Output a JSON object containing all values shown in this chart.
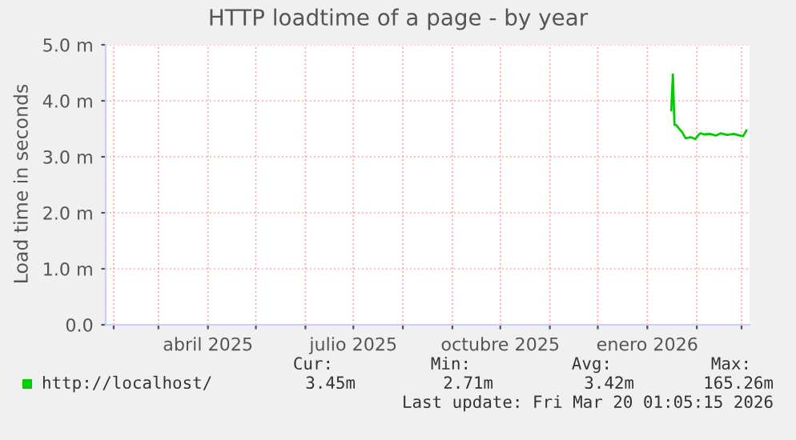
{
  "chart_data": {
    "type": "line",
    "title": "HTTP loadtime of a page - by year",
    "ylabel": "Load time in seconds",
    "xlim": [
      "2025-01-27",
      "2026-03-06"
    ],
    "xticks": [
      {
        "value": "2025-02-01",
        "label": null
      },
      {
        "value": "2025-03-01",
        "label": null
      },
      {
        "value": "2025-04-01",
        "label": "abril 2025"
      },
      {
        "value": "2025-05-01",
        "label": null
      },
      {
        "value": "2025-06-01",
        "label": null
      },
      {
        "value": "2025-07-01",
        "label": "julio 2025"
      },
      {
        "value": "2025-08-01",
        "label": null
      },
      {
        "value": "2025-09-01",
        "label": null
      },
      {
        "value": "2025-10-01",
        "label": "octubre 2025"
      },
      {
        "value": "2025-11-01",
        "label": null
      },
      {
        "value": "2025-12-01",
        "label": null
      },
      {
        "value": "2026-01-01",
        "label": "enero 2026"
      },
      {
        "value": "2026-02-01",
        "label": null
      },
      {
        "value": "2026-03-01",
        "label": null
      }
    ],
    "ylim": [
      0,
      5
    ],
    "yticks": [
      {
        "value": 0,
        "label": "0.0"
      },
      {
        "value": 1,
        "label": "1.0 m"
      },
      {
        "value": 2,
        "label": "2.0 m"
      },
      {
        "value": 3,
        "label": "3.0 m"
      },
      {
        "value": 4,
        "label": "4.0 m"
      },
      {
        "value": 5,
        "label": "5.0 m"
      }
    ],
    "grid": true,
    "legend": "bottom",
    "marker": "none",
    "line_style": "solid",
    "x": [
      "2026-01-16",
      "2026-01-17",
      "2026-01-18",
      "2026-01-19",
      "2026-01-23",
      "2026-01-25",
      "2026-01-28",
      "2026-01-31",
      "2026-02-03",
      "2026-02-06",
      "2026-02-09",
      "2026-02-13",
      "2026-02-16",
      "2026-02-20",
      "2026-02-24",
      "2026-02-28",
      "2026-03-02",
      "2026-03-04"
    ],
    "series": [
      {
        "name": "http://localhost/",
        "color": "#00cc00",
        "values": [
          3.83,
          4.47,
          3.57,
          3.57,
          3.43,
          3.33,
          3.35,
          3.32,
          3.42,
          3.4,
          3.41,
          3.38,
          3.42,
          3.39,
          3.41,
          3.38,
          3.37,
          3.47
        ]
      }
    ],
    "annotations": [
      "Cur:",
      "3.45m",
      "Min:",
      "2.71m",
      "Avg:",
      "3.42m",
      "Max:",
      "165.26m",
      "Last update: Fri Mar 20 01:05:15 2026"
    ]
  }
}
